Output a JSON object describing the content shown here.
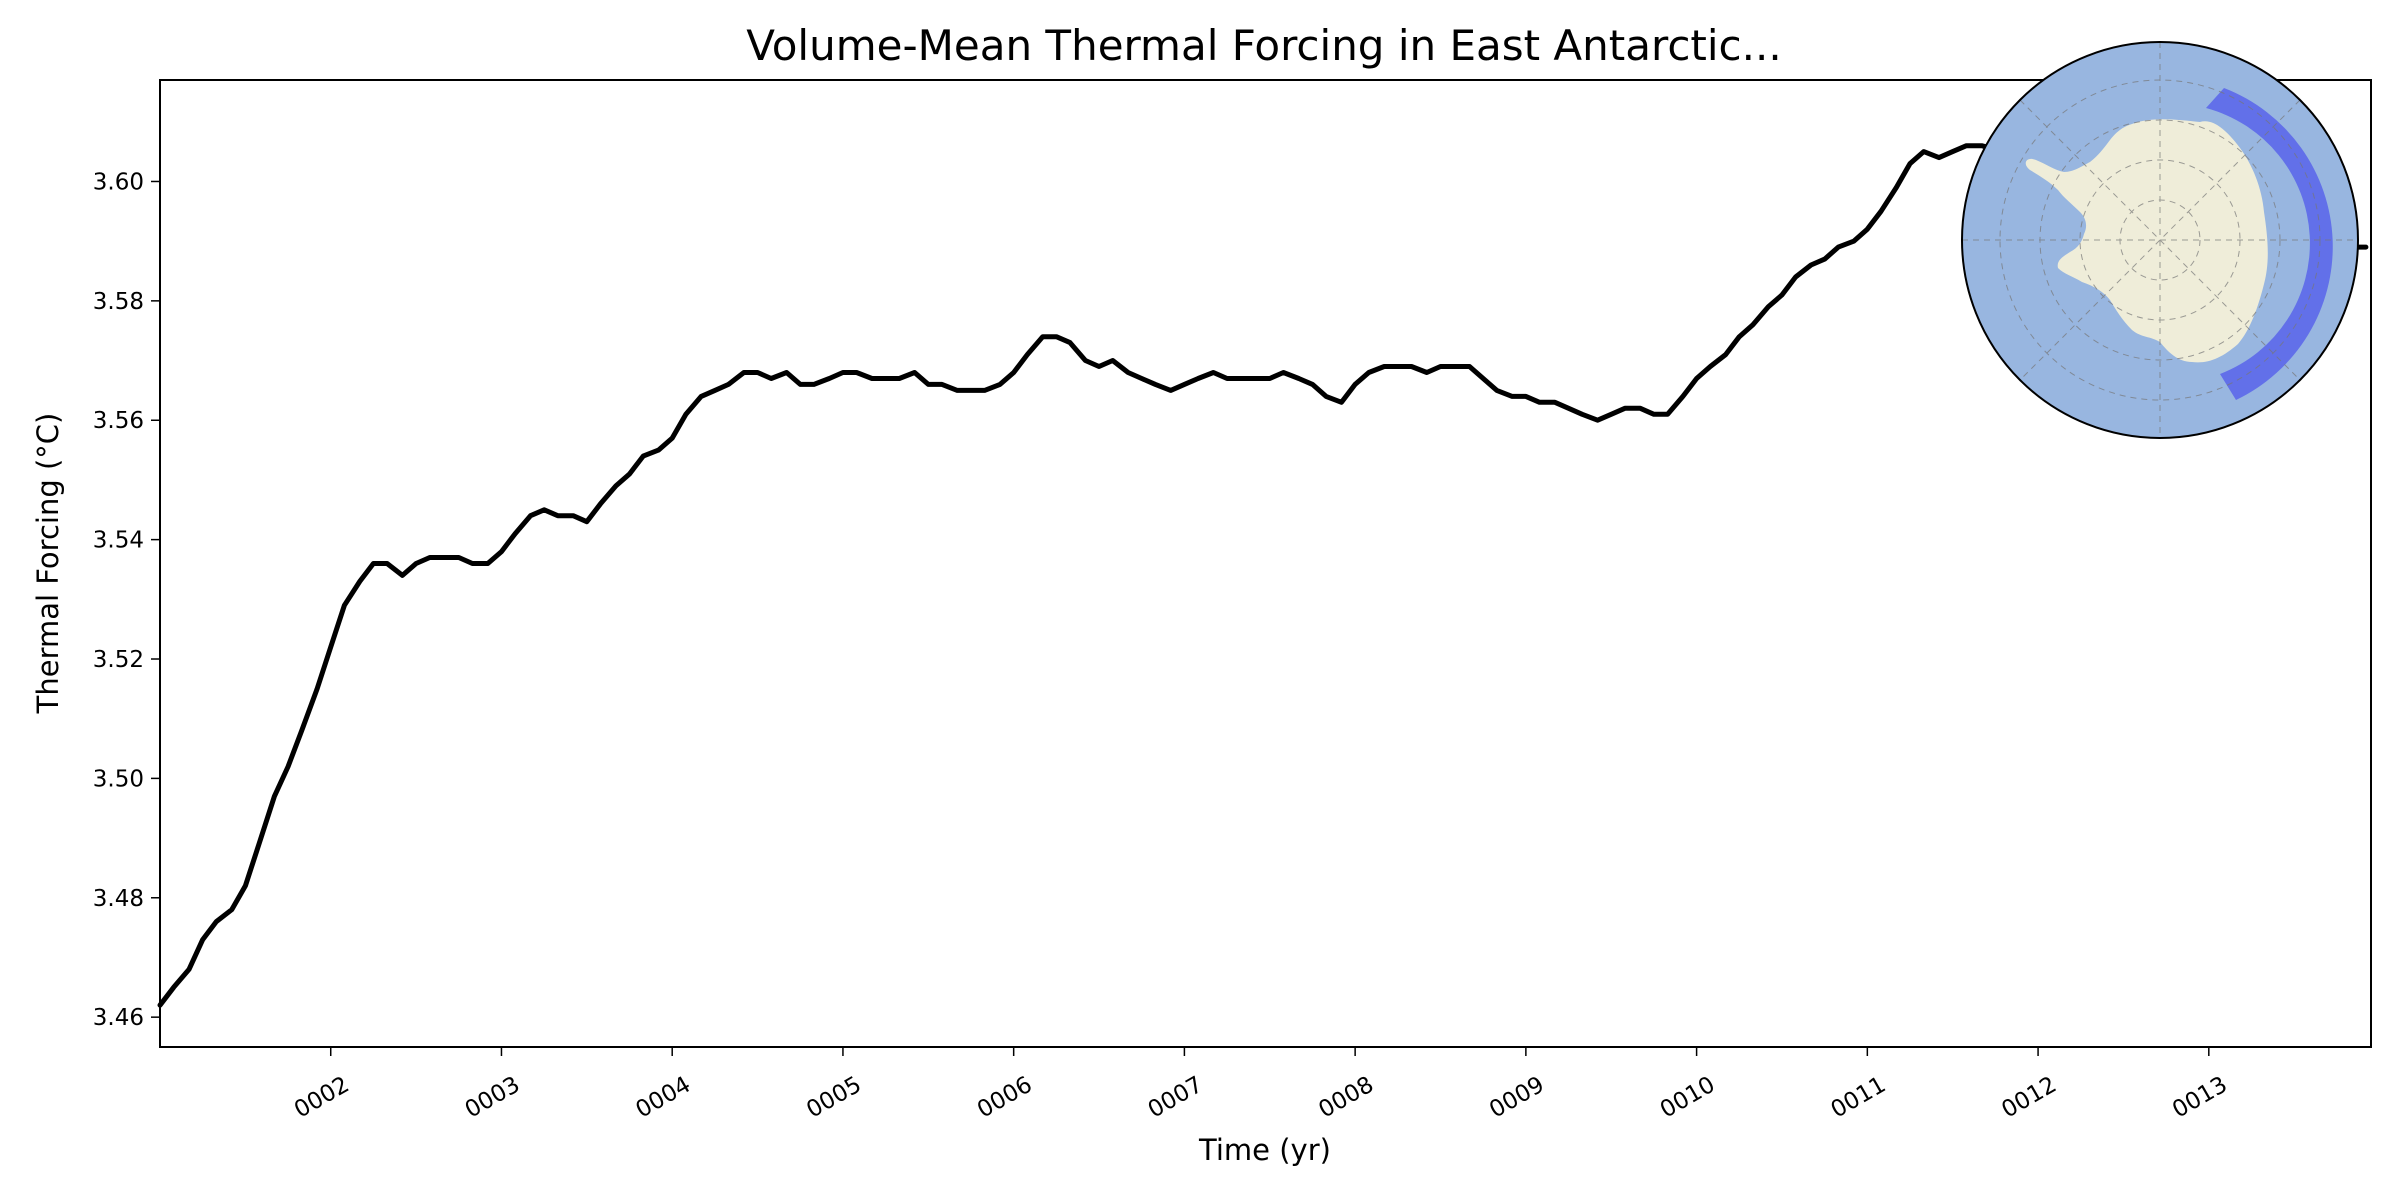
{
  "chart_data": {
    "type": "line",
    "title": "Volume-Mean Thermal Forcing in East Antarctic...",
    "xlabel": "Time (yr)",
    "ylabel": "Thermal Forcing (°C)",
    "xlim": [
      1.0,
      13.95
    ],
    "ylim": [
      3.455,
      3.617
    ],
    "grid": false,
    "line_color": "#000000",
    "x_ticks": [
      {
        "value": 2,
        "label": "0002"
      },
      {
        "value": 3,
        "label": "0003"
      },
      {
        "value": 4,
        "label": "0004"
      },
      {
        "value": 5,
        "label": "0005"
      },
      {
        "value": 6,
        "label": "0006"
      },
      {
        "value": 7,
        "label": "0007"
      },
      {
        "value": 8,
        "label": "0008"
      },
      {
        "value": 9,
        "label": "0009"
      },
      {
        "value": 10,
        "label": "0010"
      },
      {
        "value": 11,
        "label": "0011"
      },
      {
        "value": 12,
        "label": "0012"
      },
      {
        "value": 13,
        "label": "0013"
      }
    ],
    "y_ticks": [
      {
        "value": 3.46,
        "label": "3.46"
      },
      {
        "value": 3.48,
        "label": "3.48"
      },
      {
        "value": 3.5,
        "label": "3.50"
      },
      {
        "value": 3.52,
        "label": "3.52"
      },
      {
        "value": 3.54,
        "label": "3.54"
      },
      {
        "value": 3.56,
        "label": "3.56"
      },
      {
        "value": 3.58,
        "label": "3.58"
      },
      {
        "value": 3.6,
        "label": "3.60"
      }
    ],
    "series": [
      {
        "x": [
          1.0,
          1.08,
          1.17,
          1.25,
          1.33,
          1.42,
          1.5,
          1.58,
          1.67,
          1.75,
          1.83,
          1.92,
          2.0,
          2.08,
          2.17,
          2.25,
          2.33,
          2.42,
          2.5,
          2.58,
          2.67,
          2.75,
          2.83,
          2.92,
          3.0,
          3.08,
          3.17,
          3.25,
          3.33,
          3.42,
          3.5,
          3.58,
          3.67,
          3.75,
          3.83,
          3.92,
          4.0,
          4.08,
          4.17,
          4.25,
          4.33,
          4.42,
          4.5,
          4.58,
          4.67,
          4.75,
          4.83,
          4.92,
          5.0,
          5.08,
          5.17,
          5.25,
          5.33,
          5.42,
          5.5,
          5.58,
          5.67,
          5.75,
          5.83,
          5.92,
          6.0,
          6.08,
          6.17,
          6.25,
          6.33,
          6.42,
          6.5,
          6.58,
          6.67,
          6.75,
          6.83,
          6.92,
          7.0,
          7.08,
          7.17,
          7.25,
          7.33,
          7.42,
          7.5,
          7.58,
          7.67,
          7.75,
          7.83,
          7.92,
          8.0,
          8.08,
          8.17,
          8.25,
          8.33,
          8.42,
          8.5,
          8.58,
          8.67,
          8.75,
          8.83,
          8.92,
          9.0,
          9.08,
          9.17,
          9.25,
          9.33,
          9.42,
          9.5,
          9.58,
          9.67,
          9.75,
          9.83,
          9.92,
          10.0,
          10.08,
          10.17,
          10.25,
          10.33,
          10.42,
          10.5,
          10.58,
          10.67,
          10.75,
          10.83,
          10.92,
          11.0,
          11.08,
          11.17,
          11.25,
          11.33,
          11.42,
          11.5,
          11.58,
          11.67,
          13.83,
          13.92
        ],
        "y": [
          3.462,
          3.465,
          3.468,
          3.473,
          3.476,
          3.478,
          3.482,
          3.489,
          3.497,
          3.502,
          3.508,
          3.515,
          3.522,
          3.529,
          3.533,
          3.536,
          3.536,
          3.534,
          3.536,
          3.537,
          3.537,
          3.537,
          3.536,
          3.536,
          3.538,
          3.541,
          3.544,
          3.545,
          3.544,
          3.544,
          3.543,
          3.546,
          3.549,
          3.551,
          3.554,
          3.555,
          3.557,
          3.561,
          3.564,
          3.565,
          3.566,
          3.568,
          3.568,
          3.567,
          3.568,
          3.566,
          3.566,
          3.567,
          3.568,
          3.568,
          3.567,
          3.567,
          3.567,
          3.568,
          3.566,
          3.566,
          3.565,
          3.565,
          3.565,
          3.566,
          3.568,
          3.571,
          3.574,
          3.574,
          3.573,
          3.57,
          3.569,
          3.57,
          3.568,
          3.567,
          3.566,
          3.565,
          3.566,
          3.567,
          3.568,
          3.567,
          3.567,
          3.567,
          3.567,
          3.568,
          3.567,
          3.566,
          3.564,
          3.563,
          3.566,
          3.568,
          3.569,
          3.569,
          3.569,
          3.568,
          3.569,
          3.569,
          3.569,
          3.567,
          3.565,
          3.564,
          3.564,
          3.563,
          3.563,
          3.562,
          3.561,
          3.56,
          3.561,
          3.562,
          3.562,
          3.561,
          3.561,
          3.564,
          3.567,
          3.569,
          3.571,
          3.574,
          3.576,
          3.579,
          3.581,
          3.584,
          3.586,
          3.587,
          3.589,
          3.59,
          3.592,
          3.595,
          3.599,
          3.603,
          3.605,
          3.604,
          3.605,
          3.606,
          3.606,
          3.589,
          3.589
        ]
      }
    ]
  },
  "inset_map": {
    "ocean_color": "#98b6e0",
    "land_color": "#efedd9",
    "region_color": "#5864ea"
  }
}
